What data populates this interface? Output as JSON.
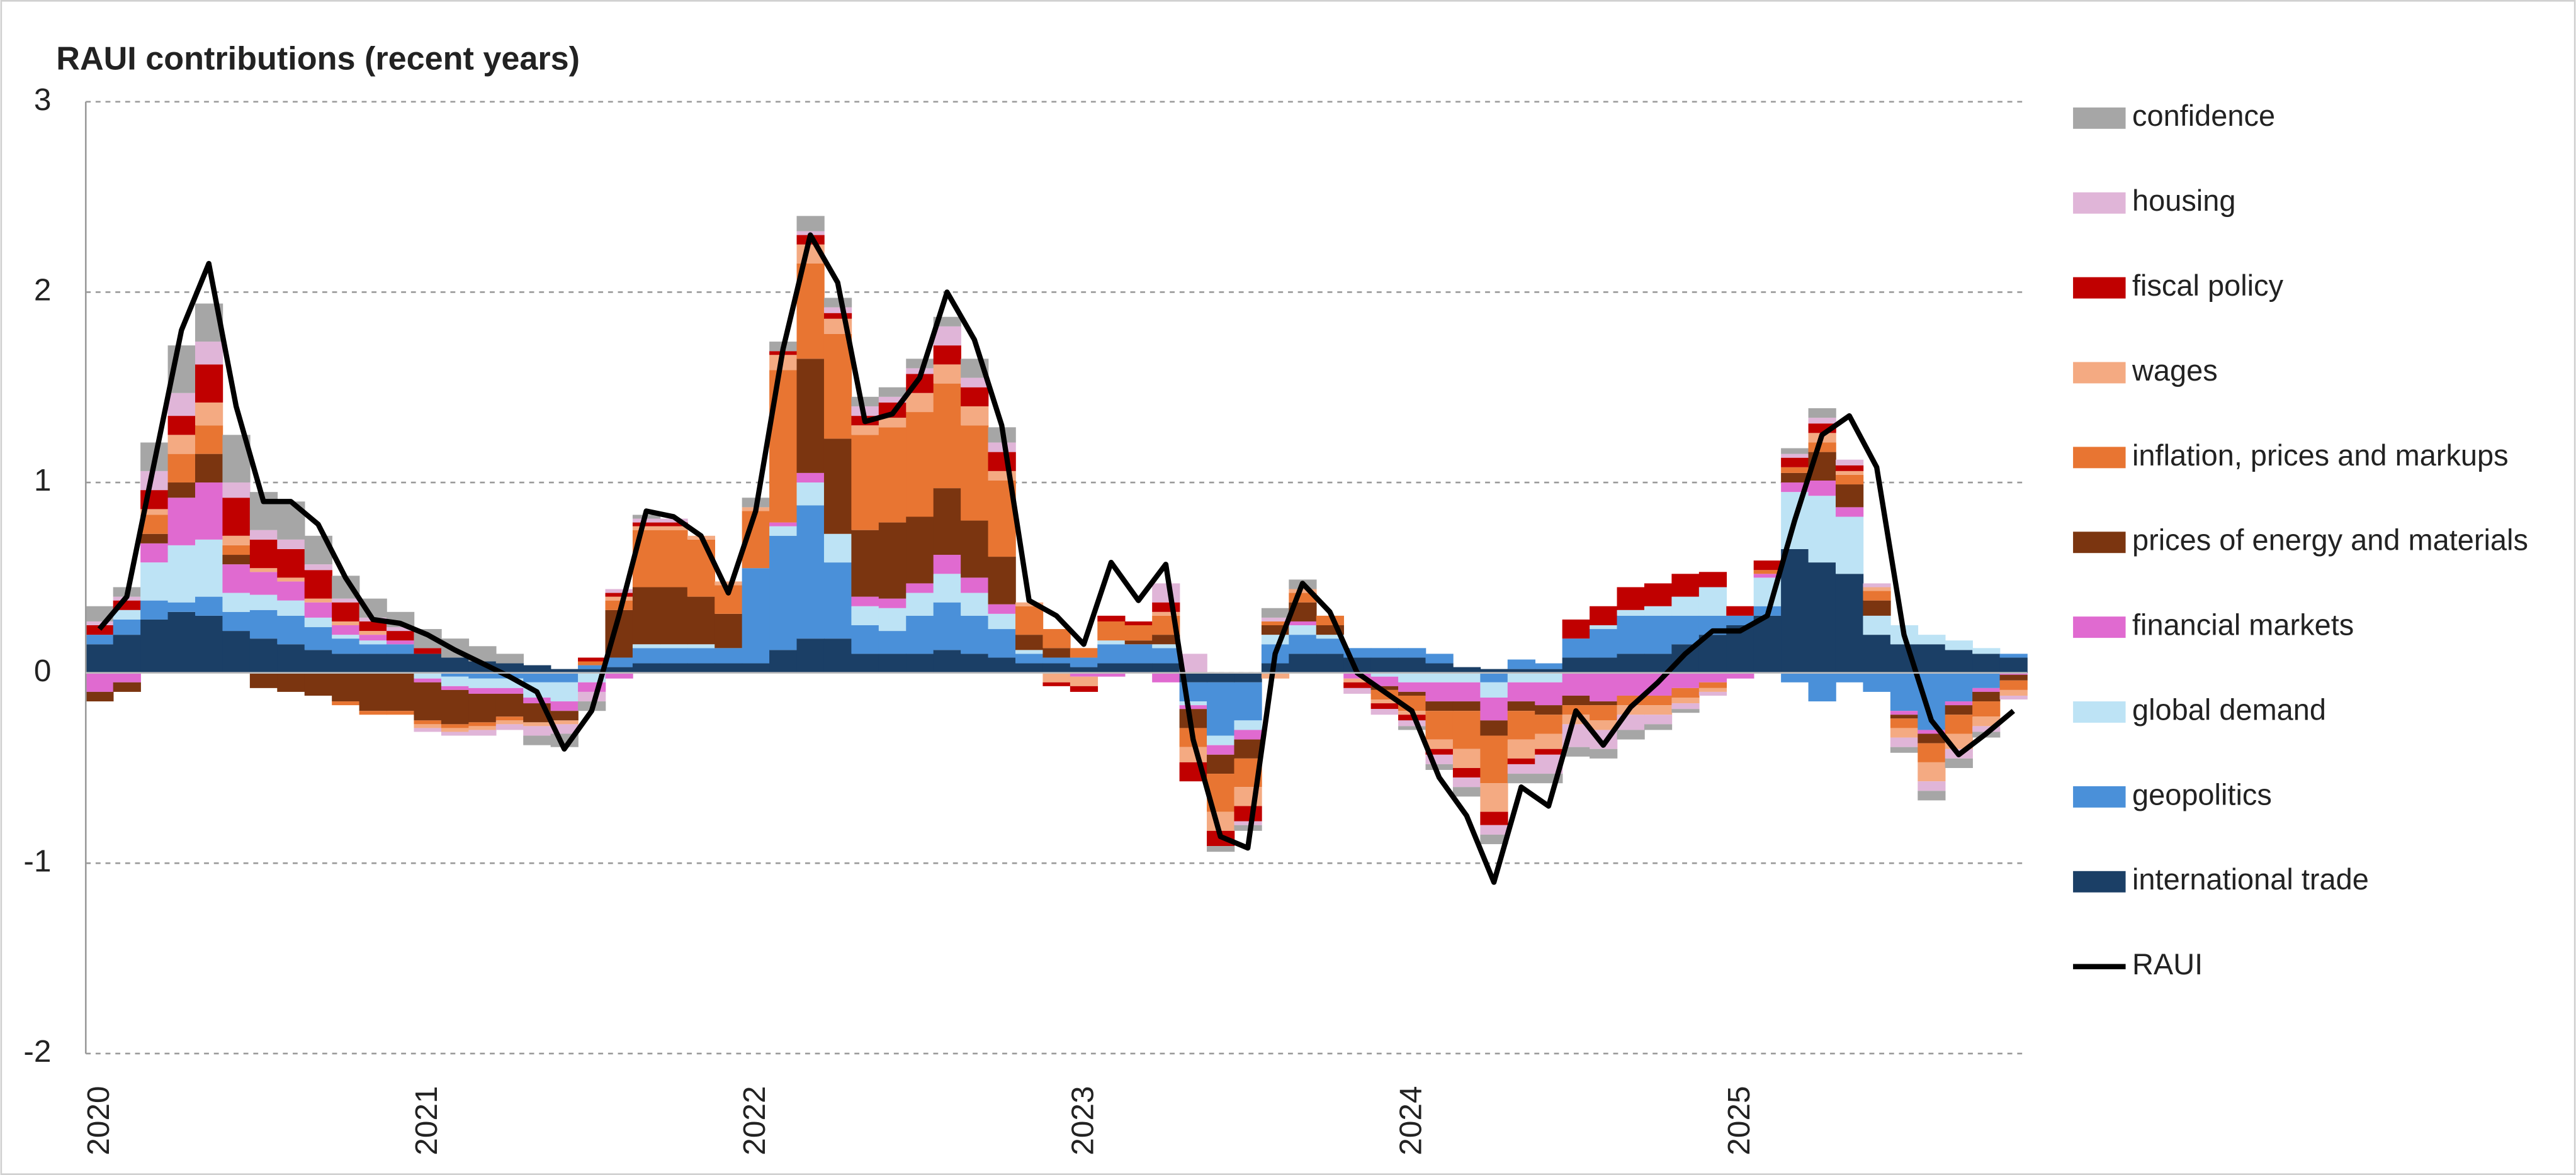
{
  "chart_data": {
    "type": "bar",
    "stacked": true,
    "title": "RAUI contributions (recent years)",
    "categories": [
      "2020",
      null,
      null,
      null,
      null,
      null,
      null,
      null,
      null,
      null,
      null,
      null,
      "2021",
      null,
      null,
      null,
      null,
      null,
      null,
      null,
      null,
      null,
      null,
      null,
      "2022",
      null,
      null,
      null,
      null,
      null,
      null,
      null,
      null,
      null,
      null,
      null,
      "2023",
      null,
      null,
      null,
      null,
      null,
      null,
      null,
      null,
      null,
      null,
      null,
      "2024",
      null,
      null,
      null,
      null,
      null,
      null,
      null,
      null,
      null,
      null,
      null,
      "2025",
      null,
      null,
      null,
      null,
      null,
      null,
      null,
      null,
      null,
      null
    ],
    "ylim": [
      -2,
      3
    ],
    "yticks": [
      -2,
      -1,
      0,
      1,
      2,
      3
    ],
    "grid": true,
    "legend": "right",
    "series": [
      {
        "name": "international trade",
        "color": "#1b3f66",
        "values": [
          0.15,
          0.2,
          0.28,
          0.32,
          0.3,
          0.22,
          0.18,
          0.15,
          0.12,
          0.1,
          0.1,
          0.1,
          0.1,
          0.08,
          0.06,
          0.05,
          0.04,
          0.02,
          0.02,
          0.03,
          0.05,
          0.05,
          0.05,
          0.05,
          0.05,
          0.12,
          0.18,
          0.18,
          0.1,
          0.1,
          0.1,
          0.12,
          0.1,
          0.08,
          0.05,
          0.05,
          0.03,
          0.05,
          0.05,
          0.05,
          -0.05,
          -0.05,
          -0.05,
          0.05,
          0.1,
          0.1,
          0.08,
          0.08,
          0.08,
          0.05,
          0.03,
          0.02,
          0.02,
          0.02,
          0.08,
          0.08,
          0.1,
          0.1,
          0.15,
          0.2,
          0.25,
          0.3,
          0.65,
          0.58,
          0.52,
          0.2,
          0.15,
          0.15,
          0.12,
          0.1,
          0.08
        ]
      },
      {
        "name": "geopolitics",
        "color": "#4a90d9",
        "values": [
          0.05,
          0.08,
          0.1,
          0.05,
          0.1,
          0.1,
          0.15,
          0.15,
          0.12,
          0.08,
          0.05,
          0.05,
          0.0,
          -0.02,
          -0.03,
          -0.03,
          -0.05,
          -0.05,
          0.02,
          0.05,
          0.08,
          0.08,
          0.08,
          0.08,
          0.5,
          0.6,
          0.7,
          0.4,
          0.15,
          0.12,
          0.2,
          0.25,
          0.2,
          0.15,
          0.05,
          0.03,
          0.05,
          0.1,
          0.1,
          0.08,
          -0.1,
          -0.28,
          -0.2,
          0.1,
          0.1,
          0.08,
          0.05,
          0.05,
          0.05,
          0.05,
          0.0,
          -0.05,
          0.05,
          0.03,
          0.1,
          0.15,
          0.2,
          0.2,
          0.15,
          0.1,
          0.05,
          0.05,
          -0.05,
          -0.15,
          -0.05,
          -0.1,
          -0.2,
          -0.3,
          -0.15,
          -0.08,
          0.02
        ]
      },
      {
        "name": "global demand",
        "color": "#bde3f5",
        "values": [
          0.0,
          0.05,
          0.2,
          0.3,
          0.3,
          0.1,
          0.08,
          0.08,
          0.05,
          0.02,
          0.02,
          0.0,
          -0.03,
          -0.05,
          -0.05,
          -0.05,
          -0.08,
          -0.1,
          -0.05,
          0.0,
          0.02,
          0.02,
          0.02,
          0.0,
          0.0,
          0.05,
          0.12,
          0.15,
          0.1,
          0.12,
          0.12,
          0.15,
          0.12,
          0.08,
          0.02,
          0.0,
          0.0,
          0.02,
          0.0,
          0.02,
          -0.02,
          -0.05,
          -0.05,
          0.05,
          0.05,
          0.02,
          0.0,
          -0.02,
          -0.05,
          -0.05,
          -0.05,
          -0.08,
          -0.05,
          -0.05,
          0.0,
          0.02,
          0.03,
          0.05,
          0.1,
          0.15,
          0.0,
          0.15,
          0.3,
          0.35,
          0.3,
          0.1,
          0.1,
          0.05,
          0.05,
          0.03,
          0.0
        ]
      },
      {
        "name": "financial markets",
        "color": "#e06ad0",
        "values": [
          -0.1,
          -0.05,
          0.1,
          0.25,
          0.3,
          0.15,
          0.12,
          0.1,
          0.08,
          0.05,
          0.03,
          0.02,
          -0.02,
          -0.02,
          -0.03,
          -0.03,
          -0.03,
          -0.05,
          -0.05,
          -0.03,
          0.0,
          0.0,
          0.0,
          0.0,
          0.0,
          0.02,
          0.05,
          0.0,
          0.05,
          0.05,
          0.05,
          0.1,
          0.08,
          0.05,
          0.0,
          0.0,
          -0.02,
          -0.02,
          0.0,
          -0.05,
          -0.02,
          -0.05,
          -0.05,
          0.0,
          0.02,
          0.0,
          -0.03,
          -0.05,
          -0.05,
          -0.1,
          -0.1,
          -0.12,
          -0.1,
          -0.12,
          -0.12,
          -0.15,
          -0.12,
          -0.12,
          -0.08,
          -0.05,
          -0.03,
          0.02,
          0.05,
          0.08,
          0.05,
          0.0,
          -0.02,
          -0.02,
          -0.02,
          -0.02,
          -0.01
        ]
      },
      {
        "name": "prices of energy and materials",
        "color": "#7b3510",
        "values": [
          -0.05,
          -0.05,
          0.05,
          0.08,
          0.15,
          0.05,
          -0.08,
          -0.1,
          -0.12,
          -0.15,
          -0.2,
          -0.2,
          -0.2,
          -0.18,
          -0.15,
          -0.12,
          -0.1,
          -0.05,
          0.0,
          0.25,
          0.3,
          0.3,
          0.25,
          0.18,
          0.0,
          0.0,
          0.6,
          0.5,
          0.35,
          0.4,
          0.35,
          0.35,
          0.3,
          0.25,
          0.08,
          0.05,
          0.0,
          0.0,
          0.02,
          0.05,
          -0.1,
          -0.1,
          -0.1,
          0.05,
          0.1,
          0.05,
          0.0,
          -0.02,
          -0.02,
          -0.05,
          -0.05,
          -0.08,
          -0.05,
          -0.05,
          -0.05,
          -0.02,
          0.0,
          0.0,
          0.0,
          0.0,
          0.0,
          0.0,
          0.05,
          0.15,
          0.12,
          0.08,
          -0.02,
          -0.05,
          -0.05,
          -0.05,
          -0.03
        ]
      },
      {
        "name": "inflation, prices and markups",
        "color": "#e87532",
        "values": [
          0.0,
          0.0,
          0.1,
          0.15,
          0.15,
          0.05,
          0.0,
          0.0,
          0.0,
          -0.02,
          -0.02,
          -0.02,
          -0.02,
          -0.02,
          -0.02,
          -0.02,
          0.0,
          0.0,
          0.02,
          0.05,
          0.3,
          0.3,
          0.3,
          0.15,
          0.3,
          0.8,
          0.5,
          0.55,
          0.5,
          0.5,
          0.55,
          0.55,
          0.5,
          0.4,
          0.15,
          0.1,
          0.05,
          0.1,
          0.08,
          0.1,
          -0.1,
          -0.2,
          -0.15,
          0.02,
          0.05,
          0.05,
          0.0,
          -0.05,
          -0.08,
          -0.15,
          -0.2,
          -0.25,
          -0.15,
          -0.1,
          -0.05,
          -0.08,
          -0.05,
          -0.05,
          -0.05,
          -0.03,
          0.0,
          0.02,
          0.03,
          0.05,
          0.05,
          0.05,
          -0.05,
          -0.1,
          -0.1,
          -0.08,
          -0.05
        ]
      },
      {
        "name": "wages",
        "color": "#f4aa82",
        "values": [
          0.0,
          0.0,
          0.03,
          0.1,
          0.12,
          0.05,
          0.02,
          0.02,
          0.02,
          0.02,
          0.02,
          0.0,
          -0.02,
          -0.02,
          -0.02,
          -0.02,
          -0.02,
          -0.02,
          0.0,
          0.02,
          0.02,
          0.02,
          0.02,
          0.02,
          0.02,
          0.08,
          0.1,
          0.08,
          0.05,
          0.05,
          0.1,
          0.1,
          0.1,
          0.05,
          0.02,
          -0.05,
          -0.05,
          0.0,
          0.0,
          0.02,
          -0.08,
          -0.1,
          -0.1,
          -0.03,
          0.02,
          0.0,
          -0.02,
          -0.02,
          -0.02,
          -0.05,
          -0.1,
          -0.15,
          -0.1,
          -0.08,
          -0.05,
          -0.05,
          -0.05,
          -0.05,
          -0.03,
          -0.02,
          0.0,
          0.0,
          0.0,
          0.05,
          0.02,
          0.02,
          -0.05,
          -0.1,
          -0.08,
          -0.05,
          -0.03
        ]
      },
      {
        "name": "fiscal policy",
        "color": "#c00000",
        "values": [
          0.05,
          0.05,
          0.1,
          0.1,
          0.2,
          0.2,
          0.15,
          0.15,
          0.15,
          0.1,
          0.05,
          0.05,
          0.03,
          0.0,
          0.0,
          0.0,
          0.0,
          0.0,
          0.02,
          0.02,
          0.02,
          0.02,
          0.0,
          0.0,
          0.0,
          0.02,
          0.05,
          0.03,
          0.05,
          0.08,
          0.1,
          0.1,
          0.1,
          0.1,
          0.0,
          -0.02,
          -0.03,
          0.03,
          0.02,
          0.05,
          -0.1,
          -0.08,
          -0.08,
          0.0,
          0.0,
          0.0,
          -0.03,
          -0.03,
          -0.03,
          -0.03,
          -0.05,
          -0.07,
          -0.03,
          -0.03,
          0.1,
          0.1,
          0.12,
          0.12,
          0.12,
          0.08,
          0.05,
          0.05,
          0.05,
          0.05,
          0.03,
          0.0,
          0.0,
          0.0,
          0.0,
          0.0,
          0.0
        ]
      },
      {
        "name": "housing",
        "color": "#e0b5d8",
        "values": [
          0.02,
          0.02,
          0.1,
          0.12,
          0.12,
          0.08,
          0.05,
          0.05,
          0.03,
          0.02,
          0.02,
          0.02,
          -0.02,
          -0.02,
          -0.03,
          -0.03,
          -0.05,
          -0.05,
          -0.05,
          0.02,
          0.02,
          0.02,
          0.0,
          0.0,
          0.0,
          0.0,
          0.02,
          0.03,
          0.05,
          0.03,
          0.03,
          0.1,
          0.05,
          0.05,
          0.0,
          0.0,
          0.0,
          0.0,
          0.0,
          0.1,
          0.1,
          0.0,
          -0.02,
          0.02,
          0.0,
          0.0,
          -0.03,
          -0.03,
          -0.03,
          -0.05,
          -0.05,
          -0.05,
          -0.05,
          -0.1,
          -0.12,
          -0.1,
          -0.08,
          -0.05,
          -0.03,
          -0.02,
          0.0,
          0.0,
          0.02,
          0.03,
          0.03,
          0.02,
          -0.05,
          -0.05,
          -0.05,
          -0.03,
          -0.02
        ]
      },
      {
        "name": "confidence",
        "color": "#a6a6a6",
        "values": [
          0.08,
          0.05,
          0.15,
          0.25,
          0.2,
          0.25,
          0.2,
          0.2,
          0.15,
          0.12,
          0.1,
          0.08,
          0.1,
          0.1,
          0.08,
          0.05,
          -0.05,
          -0.07,
          -0.05,
          0.0,
          0.02,
          0.0,
          0.0,
          0.0,
          0.05,
          0.05,
          0.08,
          0.05,
          0.05,
          0.05,
          0.05,
          0.05,
          0.1,
          0.08,
          0.0,
          0.0,
          0.0,
          0.0,
          0.0,
          0.0,
          0.0,
          -0.03,
          -0.03,
          0.05,
          0.05,
          0.0,
          0.0,
          0.0,
          -0.02,
          -0.03,
          -0.05,
          -0.05,
          -0.05,
          -0.05,
          -0.05,
          -0.05,
          -0.05,
          -0.03,
          -0.02,
          0.0,
          0.0,
          0.0,
          0.03,
          0.05,
          0.0,
          0.0,
          -0.03,
          -0.05,
          -0.05,
          -0.03,
          0.0
        ]
      },
      {
        "name": "RAUI",
        "color": "#000000",
        "type": "line",
        "values": [
          0.23,
          0.4,
          1.1,
          1.8,
          2.15,
          1.4,
          0.9,
          0.9,
          0.78,
          0.5,
          0.28,
          0.26,
          0.2,
          0.12,
          0.05,
          -0.02,
          -0.1,
          -0.4,
          -0.2,
          0.3,
          0.85,
          0.82,
          0.72,
          0.42,
          0.85,
          1.7,
          2.3,
          2.05,
          1.32,
          1.36,
          1.55,
          2.0,
          1.75,
          1.3,
          0.38,
          0.3,
          0.15,
          0.58,
          0.38,
          0.57,
          -0.35,
          -0.86,
          -0.92,
          0.1,
          0.47,
          0.32,
          0.0,
          -0.1,
          -0.2,
          -0.55,
          -0.75,
          -1.1,
          -0.6,
          -0.7,
          -0.2,
          -0.38,
          -0.18,
          -0.05,
          0.1,
          0.22,
          0.22,
          0.3,
          0.8,
          1.25,
          1.35,
          1.08,
          0.2,
          -0.25,
          -0.43,
          -0.32,
          -0.2
        ]
      }
    ]
  }
}
